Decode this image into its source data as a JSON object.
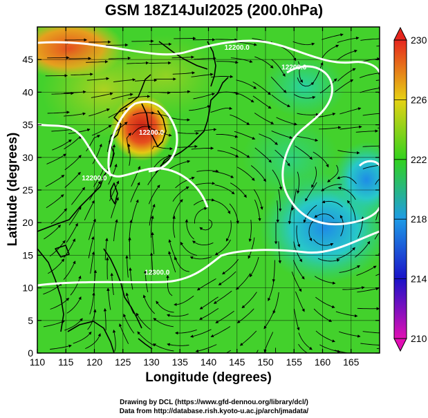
{
  "title": "GSM 18Z14Jul2025 (200.0hPa)",
  "xlabel": "Longitude (degrees)",
  "ylabel": "Latitude  (degrees)",
  "credits": {
    "line1": "Drawing by DCL (https://www.gfd-dennou.org/library/dcl/)",
    "line2": "Data from http://database.rish.kyoto-u.ac.jp/arch/jmadata/"
  },
  "chart_data": {
    "type": "heatmap",
    "xlim": [
      110,
      170
    ],
    "ylim": [
      0,
      50
    ],
    "xticks": [
      110,
      115,
      120,
      125,
      130,
      135,
      140,
      145,
      150,
      155,
      160,
      165
    ],
    "yticks": [
      0,
      5,
      10,
      15,
      20,
      25,
      30,
      35,
      40,
      45
    ],
    "xtick_labels": [
      "110",
      "115",
      "120",
      "125",
      "130",
      "135",
      "140",
      "145",
      "150",
      "155",
      "160",
      "165"
    ],
    "ytick_labels": [
      "0",
      "5",
      "10",
      "15",
      "20",
      "25",
      "30",
      "35",
      "40",
      "45"
    ],
    "colorbar": {
      "min": 210,
      "max": 230,
      "ticks": [
        210,
        214,
        218,
        222,
        226,
        230
      ],
      "tick_labels": [
        "210",
        "214",
        "218",
        "222",
        "226",
        "230"
      ]
    },
    "contours": [
      {
        "label": "12200.0",
        "lon": 145,
        "lat": 46.5
      },
      {
        "label": "12200.0",
        "lon": 155,
        "lat": 43.5
      },
      {
        "label": "12200.0",
        "lon": 130,
        "lat": 33.5
      },
      {
        "label": "12200.0",
        "lon": 120,
        "lat": 26.5
      },
      {
        "label": "12300.0",
        "lon": 131,
        "lat": 12.0
      }
    ],
    "temperature_features": [
      {
        "kind": "warm-max",
        "lon": 128,
        "lat": 36,
        "value": 229
      },
      {
        "kind": "warm",
        "lon": 114,
        "lat": 47,
        "value": 227
      },
      {
        "kind": "cool",
        "lon": 158,
        "lat": 20,
        "value": 219
      },
      {
        "kind": "cool",
        "lon": 165,
        "lat": 28,
        "value": 218
      },
      {
        "kind": "cool",
        "lon": 157,
        "lat": 43,
        "value": 220
      }
    ],
    "colors": {
      "c210": "#e10fb4",
      "c214": "#1a12c8",
      "c218": "#1e9be6",
      "c222": "#32d21e",
      "c226": "#e6d214",
      "c230": "#e6261e"
    }
  }
}
